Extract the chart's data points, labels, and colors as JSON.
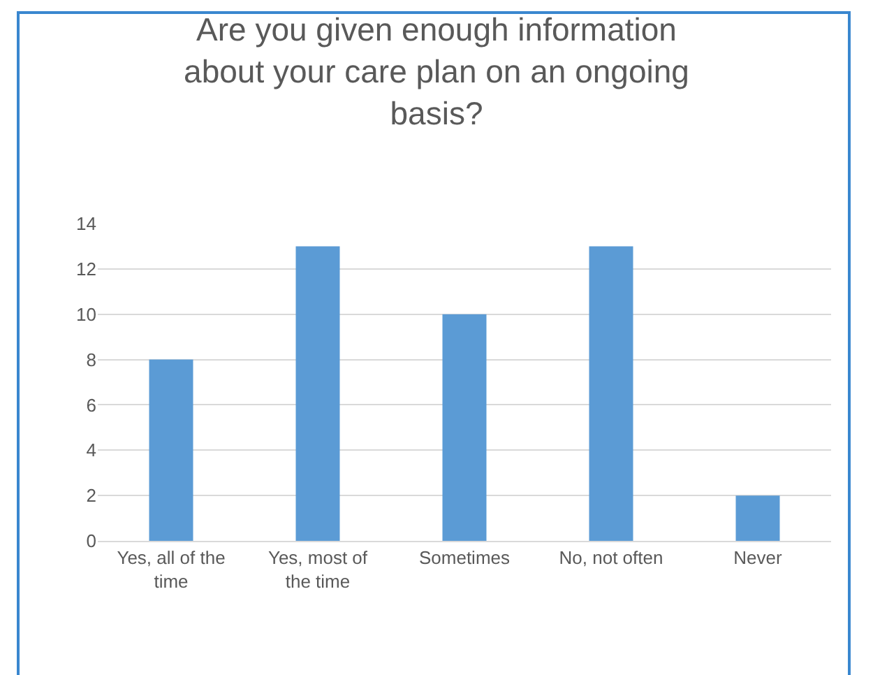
{
  "chart_data": {
    "type": "bar",
    "title": "Are you given enough information about your care plan on an ongoing basis?",
    "categories": [
      "Yes, all of the time",
      "Yes, most of the time",
      "Sometimes",
      "No, not often",
      "Never"
    ],
    "values": [
      8,
      13,
      10,
      13,
      2
    ],
    "color": "#5b9bd5",
    "ylim": [
      0,
      14
    ],
    "yticks": [
      0,
      2,
      4,
      6,
      8,
      10,
      12,
      14
    ],
    "grid": "y"
  }
}
